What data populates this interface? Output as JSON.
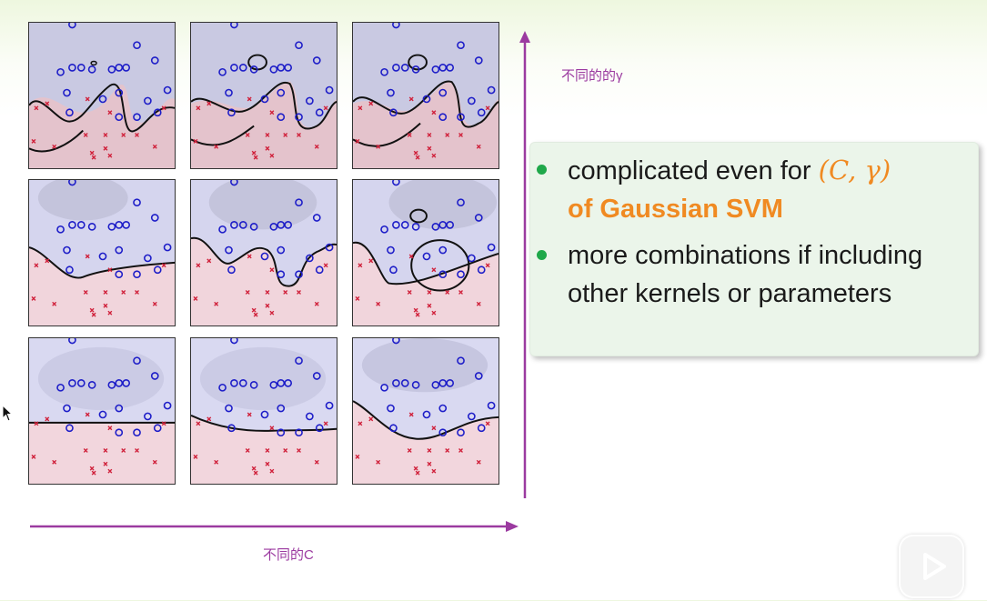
{
  "axis_labels": {
    "y": "不同的的γ",
    "x": "不同的C"
  },
  "note": {
    "bullet1_pre": "complicated even for ",
    "bullet1_math": "(C, γ)",
    "bullet1_orange": "of Gaussian SVM",
    "bullet2": "more combinations if including other kernels or parameters"
  },
  "colors": {
    "accent_purple": "#9b3aa0",
    "bullet_green": "#1fa84a",
    "highlight_orange": "#f08a22"
  },
  "icons": [
    "cursor-icon",
    "play-icon"
  ]
}
